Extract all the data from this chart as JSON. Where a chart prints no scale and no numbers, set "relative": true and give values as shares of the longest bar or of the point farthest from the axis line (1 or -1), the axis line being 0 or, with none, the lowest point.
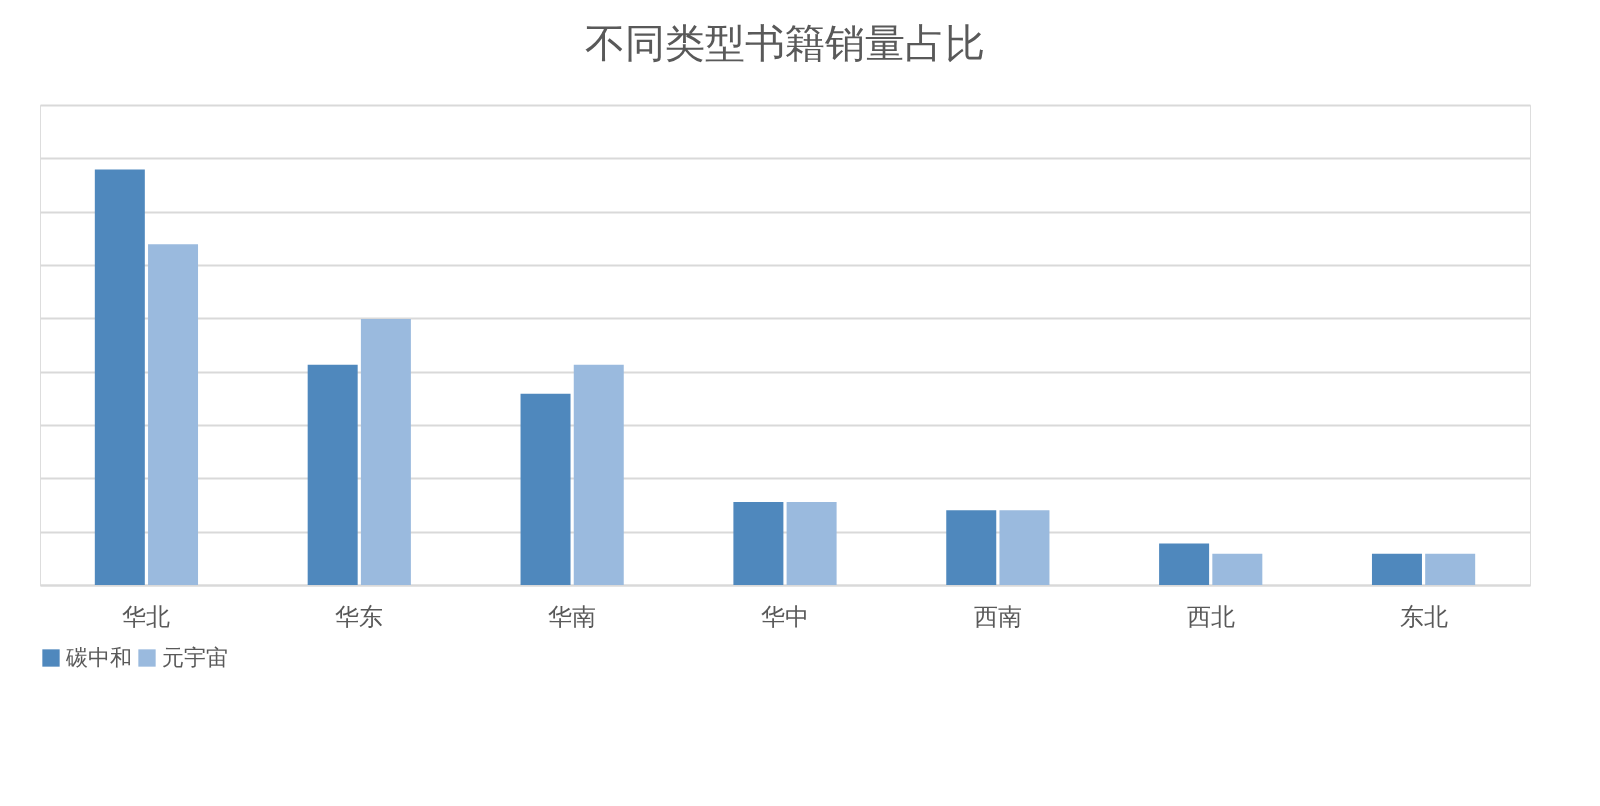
{
  "chart_data": {
    "type": "bar",
    "title": "不同类型书籍销量占比",
    "relative": true,
    "categories": [
      "华北",
      "华东",
      "华南",
      "华中",
      "西南",
      "西北",
      "东北"
    ],
    "series": [
      {
        "name": "碳中和",
        "color": "#4f88bd",
        "values": [
          1,
          0.53,
          0.46,
          0.2,
          0.18,
          0.1,
          0.075
        ]
      },
      {
        "name": "元宇宙",
        "color": "#9abade",
        "values": [
          0.82,
          0.64,
          0.53,
          0.2,
          0.18,
          0.075,
          0.075
        ]
      }
    ],
    "grid": "y",
    "legend": "bottom"
  }
}
